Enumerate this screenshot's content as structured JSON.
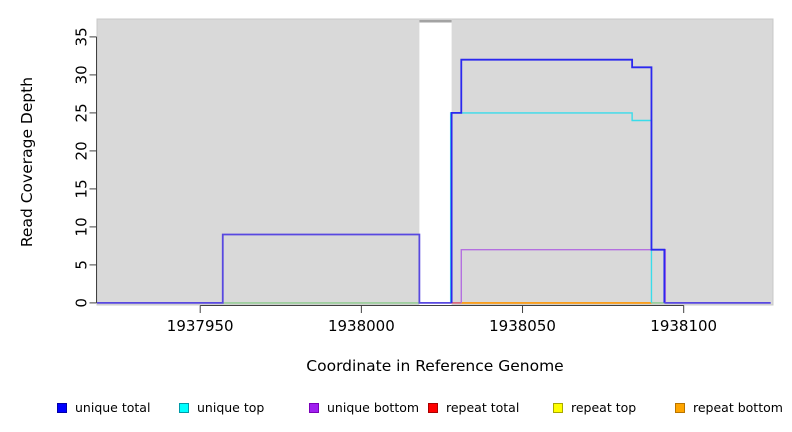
{
  "figure": {
    "background": "#ffffff",
    "plot_background": "#d9d9d9"
  },
  "chart_data": {
    "type": "line",
    "subtype": "step-coverage-plot",
    "title": "",
    "xlabel": "Coordinate in Reference Genome",
    "ylabel": "Read Coverage Depth",
    "xlim": [
      1937918,
      1938128
    ],
    "ylim": [
      0,
      37.4
    ],
    "grid": "off",
    "legend_position": "bottom",
    "plot_background": "#d9d9d9",
    "x_ticks": [
      "1937950",
      "1938000",
      "1938050",
      "1938100"
    ],
    "x_tick_values": [
      1937950,
      1938000,
      1938050,
      1938100
    ],
    "y_ticks": [
      "0",
      "5",
      "10",
      "15",
      "20",
      "25",
      "30",
      "35"
    ],
    "y_tick_values": [
      0,
      5,
      10,
      15,
      20,
      25,
      30,
      35
    ],
    "gap_band": {
      "x_start": 1938018,
      "x_end": 1938028,
      "fill": "#ffffff",
      "cap_color": "#a3a3a3"
    },
    "series": [
      {
        "name": "unique total",
        "color": "#0000ff",
        "steps": [
          [
            1937918,
            1937957,
            0
          ],
          [
            1937957,
            1938018,
            9
          ],
          [
            1938018,
            1938028,
            0
          ],
          [
            1938028,
            1938031,
            25
          ],
          [
            1938031,
            1938084,
            32
          ],
          [
            1938084,
            1938090,
            31
          ],
          [
            1938090,
            1938094,
            7
          ],
          [
            1938094,
            1938128,
            0
          ]
        ]
      },
      {
        "name": "unique top",
        "color": "#00ffff",
        "steps": [
          [
            1937918,
            1938028,
            0
          ],
          [
            1938028,
            1938084,
            25
          ],
          [
            1938084,
            1938090,
            24
          ],
          [
            1938090,
            1938128,
            0
          ]
        ]
      },
      {
        "name": "unique bottom",
        "color": "#a020f0",
        "steps": [
          [
            1937918,
            1937957,
            0
          ],
          [
            1937957,
            1938018,
            9
          ],
          [
            1938018,
            1938031,
            0
          ],
          [
            1938031,
            1938094,
            7
          ],
          [
            1938094,
            1938128,
            0
          ]
        ]
      },
      {
        "name": "repeat total",
        "color": "#ff0000",
        "steps": [
          [
            1937918,
            1938128,
            0
          ]
        ]
      },
      {
        "name": "repeat top",
        "color": "#ffff00",
        "steps": [
          [
            1937918,
            1938128,
            0
          ]
        ]
      },
      {
        "name": "repeat bottom",
        "color": "#ffa500",
        "steps": [
          [
            1937918,
            1938128,
            0
          ]
        ]
      }
    ],
    "render_segments": [
      {
        "name": "blend-line-green-left",
        "color": "#8ccb8c",
        "width": 1.4,
        "points": [
          [
            1937957,
            0
          ],
          [
            1938018,
            0
          ]
        ]
      },
      {
        "name": "blend-line-pink",
        "color": "#d94f66",
        "width": 1.4,
        "points": [
          [
            1938028,
            0
          ],
          [
            1938031,
            0
          ]
        ]
      },
      {
        "name": "repeat-bottom-line",
        "color": "#ff9500",
        "width": 1.6,
        "points": [
          [
            1938031,
            0
          ],
          [
            1938090,
            0
          ]
        ]
      },
      {
        "name": "blend-line-green-right",
        "color": "#8ccb8c",
        "width": 1.4,
        "points": [
          [
            1938090,
            0
          ],
          [
            1938094,
            0
          ]
        ]
      },
      {
        "name": "unique-bottom-line",
        "color": "#b46fe0",
        "width": 1.4,
        "points": [
          [
            1938031,
            0
          ],
          [
            1938031,
            7
          ],
          [
            1938094.3,
            7
          ],
          [
            1938094.3,
            0
          ]
        ]
      },
      {
        "name": "unique-top-line",
        "color": "#39dcea",
        "width": 1.4,
        "points": [
          [
            1938027.7,
            0
          ],
          [
            1938027.7,
            25
          ],
          [
            1938084,
            25
          ],
          [
            1938084,
            24
          ],
          [
            1938090,
            24
          ],
          [
            1938090,
            0
          ]
        ]
      },
      {
        "name": "unique-total-line-left",
        "color": "#5848e0",
        "width": 1.8,
        "points": [
          [
            1937918,
            0
          ],
          [
            1937957,
            0
          ],
          [
            1937957,
            9
          ],
          [
            1938018,
            9
          ],
          [
            1938018,
            0
          ],
          [
            1938028,
            0
          ]
        ]
      },
      {
        "name": "unique-total-line-right",
        "color": "#2b28ef",
        "width": 1.8,
        "points": [
          [
            1938028,
            0
          ],
          [
            1938028,
            25
          ],
          [
            1938031,
            25
          ],
          [
            1938031,
            32
          ],
          [
            1938084,
            32
          ],
          [
            1938084,
            31
          ],
          [
            1938090,
            31
          ],
          [
            1938090,
            7
          ],
          [
            1938094,
            7
          ],
          [
            1938094,
            0
          ]
        ]
      },
      {
        "name": "unique-total-line-tail",
        "color": "#5848e0",
        "width": 1.8,
        "points": [
          [
            1938094,
            0
          ],
          [
            1938127,
            0
          ]
        ]
      }
    ]
  },
  "legend": {
    "items": [
      {
        "label": "unique total",
        "fill": "#0000ff",
        "border": "#0000a8"
      },
      {
        "label": "unique top",
        "fill": "#00ffff",
        "border": "#009aa8"
      },
      {
        "label": "unique bottom",
        "fill": "#a020f0",
        "border": "#7a00b8"
      },
      {
        "label": "repeat total",
        "fill": "#ff0000",
        "border": "#a80000"
      },
      {
        "label": "repeat top",
        "fill": "#ffff00",
        "border": "#a8a800"
      },
      {
        "label": "repeat bottom",
        "fill": "#ffa500",
        "border": "#b87400"
      }
    ]
  }
}
